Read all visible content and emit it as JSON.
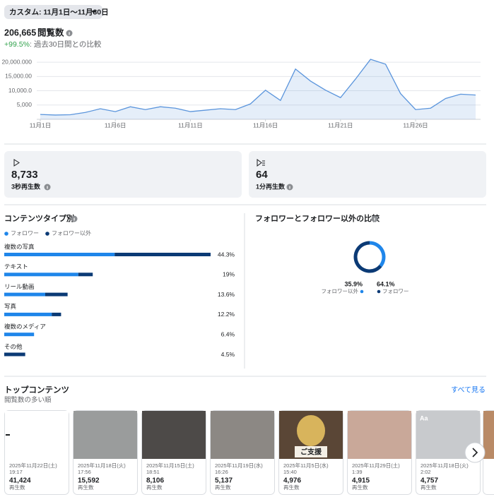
{
  "header": {
    "date_range": "カスタム: 11月1日〜11月30日",
    "total": "206,665",
    "total_label": "閲覧数",
    "change": "+99.5%",
    "change_text": ": 過去30日間との比較"
  },
  "chart_data": [
    {
      "type": "line",
      "x": [
        1,
        2,
        3,
        4,
        5,
        6,
        7,
        8,
        9,
        10,
        11,
        12,
        13,
        14,
        15,
        16,
        17,
        18,
        19,
        20,
        21,
        22,
        23,
        24,
        25,
        26,
        27,
        28,
        29,
        30
      ],
      "xlim": [
        1,
        30
      ],
      "xticks": [
        {
          "value": 1,
          "label": "11月1日"
        },
        {
          "value": 6,
          "label": "11月6日"
        },
        {
          "value": 11,
          "label": "11月11日"
        },
        {
          "value": 16,
          "label": "11月16日"
        },
        {
          "value": 21,
          "label": "11月21日"
        },
        {
          "value": 26,
          "label": "11月26日"
        }
      ],
      "ylim": [
        0,
        22000
      ],
      "yticks": [
        {
          "value": 5000,
          "label": "5,000"
        },
        {
          "value": 10000,
          "label": "10,000.0"
        },
        {
          "value": 15000,
          "label": "15,000.00"
        },
        {
          "value": 20000,
          "label": "20,000.000"
        }
      ],
      "grid": true,
      "series": [
        {
          "color": "#5b95dc",
          "values": [
            1700,
            1500,
            1600,
            2400,
            3700,
            2700,
            4400,
            3400,
            4400,
            3900,
            2700,
            3200,
            3700,
            3400,
            5400,
            10200,
            6600,
            17600,
            13400,
            10200,
            7600,
            14100,
            21000,
            19300,
            9000,
            3400,
            3900,
            7300,
            8800,
            8500
          ]
        }
      ]
    },
    {
      "type": "stacked_bar",
      "title": "コンテンツタイプ別",
      "categories": [
        "複数の写真",
        "テキスト",
        "リール動画",
        "写真",
        "複数のメディア",
        "その他"
      ],
      "series": [
        {
          "name": "フォロワー",
          "color": "#1f86ea",
          "values": [
            23.7,
            15.9,
            8.8,
            10.2,
            6.4,
            0
          ]
        },
        {
          "name": "フォロワー以外",
          "color": "#0b3a75",
          "values": [
            20.6,
            3.1,
            4.8,
            2.0,
            0,
            4.5
          ]
        }
      ],
      "values": [
        44.3,
        19,
        13.6,
        12.2,
        6.4,
        4.5
      ],
      "value_labels": [
        "44.3%",
        "19%",
        "13.6%",
        "12.2%",
        "6.4%",
        "4.5%"
      ],
      "xlim": [
        0,
        44.3
      ]
    },
    {
      "type": "pie",
      "title": "フォロワーとフォロワー以外の比較",
      "donut": true,
      "categories": [
        "フォロワー以外",
        "フォロワー"
      ],
      "values": [
        35.9,
        64.1
      ],
      "value_labels": [
        "35.9%",
        "64.1%"
      ],
      "colors": [
        "#1f86ea",
        "#0b3a75"
      ]
    }
  ],
  "stats": [
    {
      "value": "8,733",
      "label": "3秒再生数"
    },
    {
      "value": "64",
      "label": "1分再生数"
    }
  ],
  "top_content": {
    "title": "トップコンテンツ",
    "subtitle": "閲覧数の多い順",
    "see_all": "すべて見る",
    "items": [
      {
        "date": "2025年11月22日(土)",
        "time": "19:17",
        "count": "41,424",
        "count_label": "再生数"
      },
      {
        "date": "2025年11月18日(火)",
        "time": "17:56",
        "count": "15,592",
        "count_label": "再生数"
      },
      {
        "date": "2025年11月15日(土)",
        "time": "18:51",
        "count": "8,106",
        "count_label": "再生数"
      },
      {
        "date": "2025年11月19日(水)",
        "time": "16:26",
        "count": "5,137",
        "count_label": "再生数"
      },
      {
        "date": "2025年11月5日(水)",
        "time": "15:40",
        "count": "4,976",
        "count_label": "再生数",
        "thumb_text": "ご支援"
      },
      {
        "date": "2025年11月29日(土)",
        "time": "1:39",
        "count": "4,915",
        "count_label": "再生数"
      },
      {
        "date": "2025年11月18日(火)",
        "time": "2:02",
        "count": "4,757",
        "count_label": "再生数",
        "thumb_text": "Aa"
      }
    ]
  }
}
